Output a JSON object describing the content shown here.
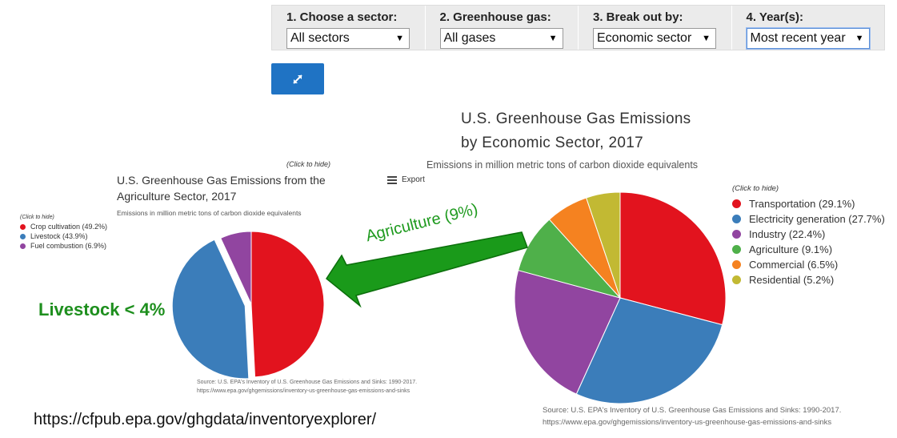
{
  "filters": [
    {
      "label": "1. Choose a sector:",
      "value": "All sectors"
    },
    {
      "label": "2. Greenhouse gas:",
      "value": "All gases"
    },
    {
      "label": "3. Break out by:",
      "value": "Economic sector"
    },
    {
      "label": "4. Year(s):",
      "value": "Most recent year"
    }
  ],
  "icons": {
    "expand": "expand-arrows-icon",
    "export": "menu-icon",
    "caret": "caret-down-icon"
  },
  "click_to_hide": "(Click to hide)",
  "export_label": "Export",
  "annotations": {
    "arrow_label": "Agriculture (9%)",
    "livestock": "Livestock < 4%",
    "url": "https://cfpub.epa.gov/ghgdata/inventoryexplorer/",
    "arrow_color": "#1a9a1a"
  },
  "chart_data": [
    {
      "type": "pie",
      "title": "U.S. Greenhouse Gas Emissions from the Agriculture Sector, 2017",
      "subtitle": "Emissions in million metric tons of carbon dioxide equivalents",
      "legend_position": "left",
      "labels": [
        "Crop cultivation (49.2%)",
        "Livestock (43.9%)",
        "Fuel combustion (6.9%)"
      ],
      "values": [
        49.2,
        43.9,
        6.9
      ],
      "colors": [
        "#e2131e",
        "#3b7dba",
        "#9145a0"
      ],
      "exploded_index": 1,
      "source_lines": [
        "Source: U.S. EPA's Inventory of U.S. Greenhouse Gas Emissions and Sinks: 1990-2017.",
        "https://www.epa.gov/ghgemissions/inventory-us-greenhouse-gas-emissions-and-sinks"
      ]
    },
    {
      "type": "pie",
      "title": "U.S. Greenhouse Gas Emissions by Economic Sector, 2017",
      "title_lines": [
        "U.S. Greenhouse Gas Emissions",
        "by Economic Sector, 2017"
      ],
      "subtitle": "Emissions in million metric tons of carbon dioxide equivalents",
      "legend_position": "right",
      "labels": [
        "Transportation (29.1%)",
        "Electricity generation (27.7%)",
        "Industry (22.4%)",
        "Agriculture (9.1%)",
        "Commercial (6.5%)",
        "Residential (5.2%)"
      ],
      "values": [
        29.1,
        27.7,
        22.4,
        9.1,
        6.5,
        5.2
      ],
      "colors": [
        "#e2131e",
        "#3b7dba",
        "#9145a0",
        "#4fb04a",
        "#f58220",
        "#c2b933"
      ],
      "source_lines": [
        "Source: U.S. EPA's Inventory of U.S. Greenhouse Gas Emissions and Sinks: 1990-2017.",
        "https://www.epa.gov/ghgemissions/inventory-us-greenhouse-gas-emissions-and-sinks"
      ]
    }
  ]
}
